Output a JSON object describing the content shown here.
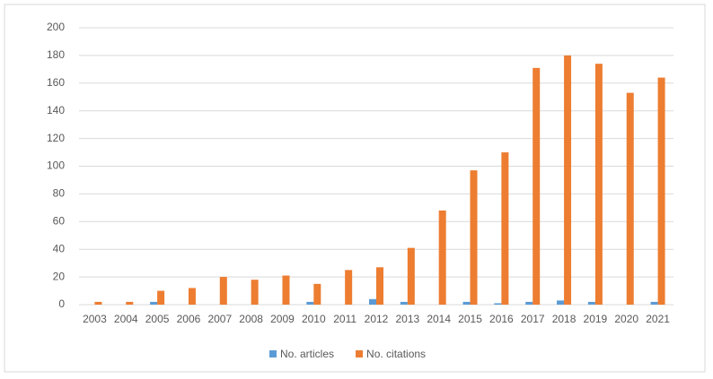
{
  "chart_data": {
    "type": "bar",
    "categories": [
      "2003",
      "2004",
      "2005",
      "2006",
      "2007",
      "2008",
      "2009",
      "2010",
      "2011",
      "2012",
      "2013",
      "2014",
      "2015",
      "2016",
      "2017",
      "2018",
      "2019",
      "2020",
      "2021"
    ],
    "series": [
      {
        "name": "No. articles",
        "color": "#5b9bd5",
        "values": [
          0,
          0,
          2,
          0,
          0,
          0,
          0,
          2,
          0,
          4,
          2,
          0,
          2,
          1,
          2,
          3,
          2,
          0,
          2
        ]
      },
      {
        "name": "No. citations",
        "color": "#ed7d31",
        "values": [
          2,
          2,
          10,
          12,
          20,
          18,
          21,
          15,
          25,
          27,
          41,
          68,
          97,
          110,
          171,
          180,
          174,
          153,
          164
        ]
      }
    ],
    "ylim": [
      0,
      200
    ],
    "yticks": [
      0,
      20,
      40,
      60,
      80,
      100,
      120,
      140,
      160,
      180,
      200
    ],
    "grid": true,
    "legend": "bottom"
  }
}
